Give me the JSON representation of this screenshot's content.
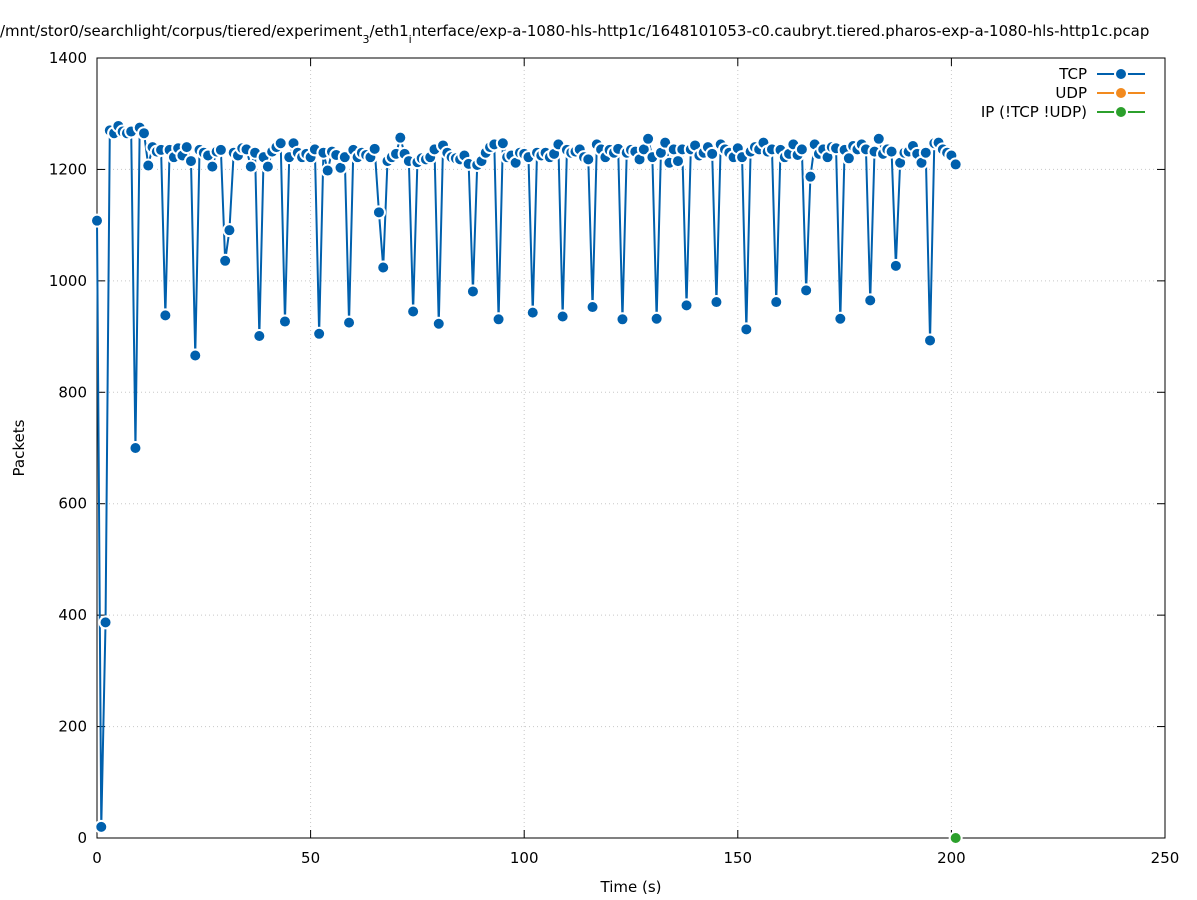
{
  "chart_data": {
    "type": "line",
    "title": [
      {
        "text": "/mnt/stor0/searchlight/corpus/tiered/experiment",
        "sub": false
      },
      {
        "text": "3",
        "sub": true
      },
      {
        "text": "/eth1",
        "sub": false
      },
      {
        "text": "i",
        "sub": true
      },
      {
        "text": "nterface/exp-a-1080-hls-http1c/1648101053-c0.caubryt.tiered.pharos-exp-a-1080-hls-http1c.pcap",
        "sub": false
      }
    ],
    "x_label": "Time (s)",
    "y_label": "Packets",
    "xlim": [
      0,
      250
    ],
    "xticks": [
      0,
      50,
      100,
      150,
      200,
      250
    ],
    "ylim": [
      0,
      1400
    ],
    "yticks": [
      0,
      200,
      400,
      600,
      800,
      1000,
      1200,
      1400
    ],
    "grid": true,
    "legend": "top-right",
    "series": [
      {
        "name": "TCP",
        "color": "#0060ad",
        "x": [
          0,
          1,
          2,
          3,
          4,
          5,
          6,
          7,
          8,
          9,
          10,
          11,
          12,
          13,
          14,
          15,
          16,
          17,
          18,
          19,
          20,
          21,
          22,
          23,
          24,
          25,
          26,
          27,
          28,
          29,
          30,
          31,
          32,
          33,
          34,
          35,
          36,
          37,
          38,
          39,
          40,
          41,
          42,
          43,
          44,
          45,
          46,
          47,
          48,
          49,
          50,
          51,
          52,
          53,
          54,
          55,
          56,
          57,
          58,
          59,
          60,
          61,
          62,
          63,
          64,
          65,
          66,
          67,
          68,
          69,
          70,
          71,
          72,
          73,
          74,
          75,
          76,
          77,
          78,
          79,
          80,
          81,
          82,
          83,
          84,
          85,
          86,
          87,
          88,
          89,
          90,
          91,
          92,
          93,
          94,
          95,
          96,
          97,
          98,
          99,
          100,
          101,
          102,
          103,
          104,
          105,
          106,
          107,
          108,
          109,
          110,
          111,
          112,
          113,
          114,
          115,
          116,
          117,
          118,
          119,
          120,
          121,
          122,
          123,
          124,
          125,
          126,
          127,
          128,
          129,
          130,
          131,
          132,
          133,
          134,
          135,
          136,
          137,
          138,
          139,
          140,
          141,
          142,
          143,
          144,
          145,
          146,
          147,
          148,
          149,
          150,
          151,
          152,
          153,
          154,
          155,
          156,
          157,
          158,
          159,
          160,
          161,
          162,
          163,
          164,
          165,
          166,
          167,
          168,
          169,
          170,
          171,
          172,
          173,
          174,
          175,
          176,
          177,
          178,
          179,
          180,
          181,
          182,
          183,
          184,
          185,
          186,
          187,
          188,
          189,
          190,
          191,
          192,
          193,
          194,
          195,
          196,
          197,
          198,
          199,
          200,
          201
        ],
        "values": [
          1108,
          20,
          387,
          1270,
          1265,
          1278,
          1268,
          1265,
          1268,
          700,
          1275,
          1265,
          1207,
          1240,
          1232,
          1235,
          938,
          1235,
          1222,
          1238,
          1225,
          1240,
          1215,
          866,
          1235,
          1230,
          1225,
          1205,
          1232,
          1235,
          1036,
          1091,
          1230,
          1225,
          1238,
          1236,
          1205,
          1230,
          901,
          1222,
          1205,
          1232,
          1240,
          1247,
          927,
          1222,
          1247,
          1230,
          1222,
          1228,
          1222,
          1236,
          905,
          1230,
          1198,
          1232,
          1226,
          1203,
          1222,
          925,
          1235,
          1222,
          1230,
          1226,
          1222,
          1237,
          1123,
          1024,
          1215,
          1222,
          1228,
          1257,
          1228,
          1215,
          945,
          1213,
          1220,
          1218,
          1222,
          1236,
          923,
          1243,
          1230,
          1222,
          1220,
          1218,
          1225,
          1210,
          981,
          1208,
          1215,
          1230,
          1240,
          1245,
          931,
          1247,
          1222,
          1225,
          1212,
          1230,
          1228,
          1222,
          943,
          1230,
          1225,
          1230,
          1222,
          1228,
          1245,
          936,
          1235,
          1230,
          1232,
          1236,
          1222,
          1218,
          953,
          1245,
          1236,
          1222,
          1235,
          1230,
          1237,
          931,
          1230,
          1235,
          1232,
          1218,
          1236,
          1255,
          1222,
          932,
          1230,
          1248,
          1212,
          1236,
          1215,
          1236,
          956,
          1236,
          1243,
          1225,
          1230,
          1240,
          1228,
          962,
          1245,
          1236,
          1230,
          1222,
          1238,
          1222,
          913,
          1232,
          1240,
          1236,
          1248,
          1232,
          1236,
          962,
          1235,
          1222,
          1228,
          1245,
          1226,
          1236,
          983,
          1187,
          1245,
          1228,
          1236,
          1222,
          1240,
          1238,
          932,
          1235,
          1220,
          1242,
          1236,
          1245,
          1236,
          965,
          1232,
          1255,
          1228,
          1236,
          1232,
          1027,
          1212,
          1230,
          1232,
          1242,
          1228,
          1212,
          1230,
          893,
          1247,
          1248,
          1236,
          1230,
          1225,
          1209
        ]
      },
      {
        "name": "UDP",
        "color": "#f28a1e",
        "x": [],
        "values": []
      },
      {
        "name": "IP (!TCP  !UDP)",
        "color": "#2ca02c",
        "x": [
          201
        ],
        "values": [
          0
        ]
      }
    ]
  }
}
